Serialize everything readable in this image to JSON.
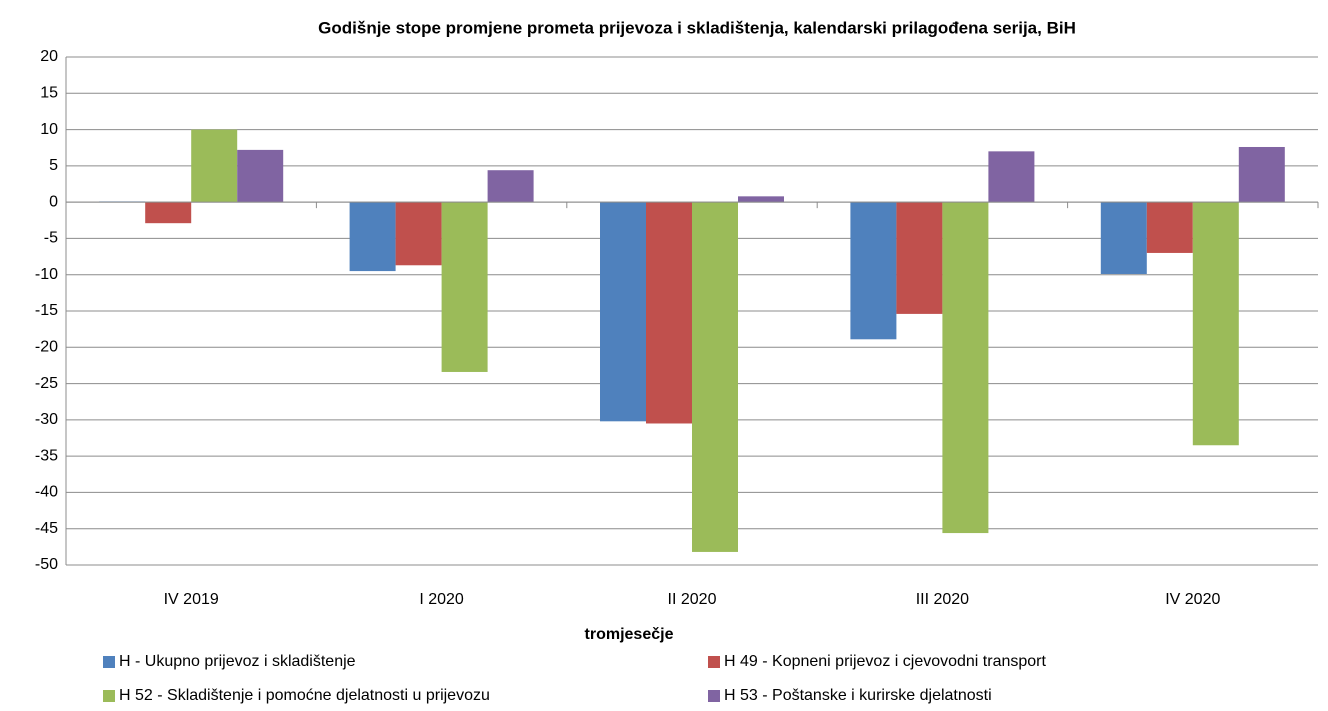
{
  "chart_data": {
    "type": "bar",
    "title": "Godišnje stope promjene prometa prijevoza i skladištenja, kalendarski prilagođena serija, BiH",
    "x_label": "tromjesečje",
    "categories": [
      "IV 2019",
      "I 2020",
      "II 2020",
      "III 2020",
      "IV 2020"
    ],
    "series": [
      {
        "name": "H - Ukupno prijevoz i skladištenje",
        "color": "#4f81bd",
        "values": [
          0.1,
          -9.5,
          -30.2,
          -18.9,
          -9.9
        ]
      },
      {
        "name": "H 49 - Kopneni prijevoz i cjevovodni transport",
        "color": "#c0504d",
        "values": [
          -2.9,
          -8.7,
          -30.5,
          -15.4,
          -7.0
        ]
      },
      {
        "name": "H 52 - Skladištenje i pomoćne djelatnosti u prijevozu",
        "color": "#9bbb59",
        "values": [
          10.0,
          -23.4,
          -48.2,
          -45.6,
          -33.5
        ]
      },
      {
        "name": "H 53 - Poštanske i kurirske djelatnosti",
        "color": "#8064a2",
        "values": [
          7.2,
          4.4,
          0.8,
          7.0,
          7.6
        ]
      }
    ],
    "ylim": [
      -50,
      20
    ],
    "yticks": [
      -50,
      -45,
      -40,
      -35,
      -30,
      -25,
      -20,
      -15,
      -10,
      -5,
      0,
      5,
      10,
      15,
      20
    ],
    "grid": true,
    "legend": "bottom"
  }
}
